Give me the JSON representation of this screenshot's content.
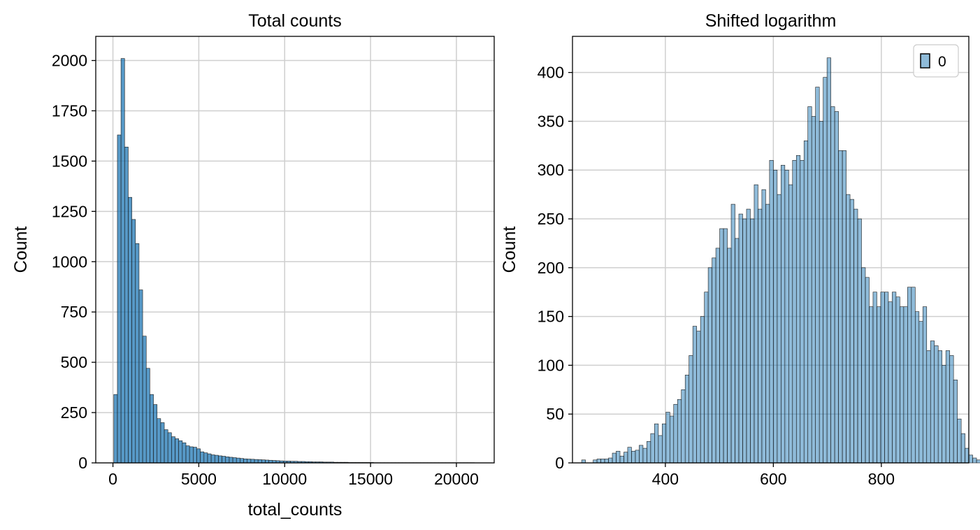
{
  "chart_data": [
    {
      "type": "bar",
      "title": "Total counts",
      "xlabel": "total_counts",
      "ylabel": "Count",
      "xlim": [
        -1000,
        22200
      ],
      "ylim": [
        0,
        2120
      ],
      "xticks": [
        0,
        5000,
        10000,
        15000,
        20000
      ],
      "yticks": [
        0,
        250,
        500,
        750,
        1000,
        1250,
        1500,
        1750,
        2000
      ],
      "grid": true,
      "legend": null,
      "color": "#1f77b4",
      "bar_alpha": 0.75,
      "bin_start": 50,
      "bin_width": 210,
      "counts": [
        340,
        1630,
        2010,
        1570,
        1320,
        1210,
        1090,
        860,
        630,
        470,
        340,
        290,
        220,
        200,
        165,
        150,
        130,
        120,
        110,
        100,
        85,
        80,
        78,
        70,
        55,
        50,
        45,
        40,
        38,
        35,
        33,
        30,
        28,
        26,
        24,
        22,
        20,
        19,
        18,
        17,
        16,
        15,
        14,
        13,
        12,
        11,
        10,
        9,
        9,
        8,
        8,
        7,
        7,
        6,
        6,
        5,
        5,
        5,
        4,
        4,
        4,
        3,
        3,
        3,
        3,
        2,
        2,
        2,
        2,
        2,
        2,
        2,
        1,
        1,
        1,
        1,
        1,
        1,
        1,
        1,
        1,
        1,
        1,
        1,
        1,
        1,
        1,
        1,
        1,
        1,
        1,
        1,
        1,
        1,
        1,
        1,
        1,
        1,
        1,
        1
      ]
    },
    {
      "type": "bar",
      "title": "Shifted logarithm",
      "xlabel": "",
      "ylabel": "Count",
      "xlim": [
        228,
        962
      ],
      "ylim": [
        0,
        437
      ],
      "xticks": [
        400,
        600,
        800
      ],
      "yticks": [
        0,
        50,
        100,
        150,
        200,
        250,
        300,
        350,
        400
      ],
      "grid": true,
      "legend": {
        "position": "top-right",
        "entries": [
          "0"
        ]
      },
      "color": "#1f77b4",
      "bar_alpha": 0.5,
      "bin_start": 245,
      "bin_width": 7.1,
      "counts": [
        3,
        0,
        0,
        3,
        4,
        4,
        4,
        5,
        10,
        12,
        7,
        11,
        16,
        12,
        13,
        18,
        15,
        22,
        30,
        40,
        28,
        40,
        52,
        48,
        60,
        65,
        75,
        90,
        110,
        140,
        135,
        150,
        175,
        200,
        210,
        220,
        240,
        240,
        220,
        265,
        230,
        255,
        250,
        260,
        250,
        285,
        260,
        280,
        265,
        310,
        300,
        275,
        305,
        300,
        285,
        310,
        315,
        310,
        330,
        365,
        355,
        385,
        350,
        395,
        415,
        365,
        360,
        320,
        320,
        275,
        270,
        260,
        250,
        200,
        190,
        160,
        175,
        160,
        175,
        175,
        165,
        175,
        170,
        160,
        160,
        180,
        180,
        155,
        145,
        160,
        115,
        125,
        120,
        115,
        100,
        115,
        110,
        85,
        45,
        30,
        15,
        8,
        5,
        3
      ]
    }
  ]
}
